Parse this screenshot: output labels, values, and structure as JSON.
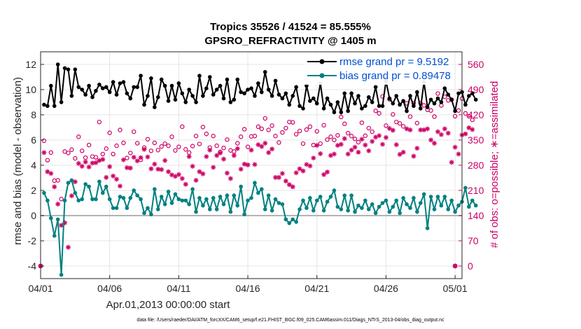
{
  "chart_data": {
    "type": "line",
    "title": "Tropics 35526 / 41524 = 85.555%",
    "subtitle": "GPSRO_REFRACTIVITY @ 1405 m",
    "xlabel": "Apr.01,2013 00:00:00 start",
    "ylabel_left": "rmse and bias (model - observation)",
    "ylabel_right": "# of obs: o=possible; ∗=assimilated",
    "footnote": "data file: /Users/raeder/DAI/ATM_forcXX/CAM6_setup/f.e21.FHIST_BGC.f09_025.CAM6assim.011/Diags_NTrS_2013-04/obs_diag_output.nc",
    "xlim": [
      0,
      30.5
    ],
    "ylim_left": [
      -5,
      13
    ],
    "ylim_right": [
      -35,
      595
    ],
    "x_ticks": [
      0,
      5,
      10,
      15,
      20,
      25,
      30
    ],
    "x_tick_labels": [
      "04/01",
      "04/06",
      "04/11",
      "04/16",
      "04/21",
      "04/26",
      "05/01"
    ],
    "y_left_ticks": [
      "-4",
      "-2",
      "0",
      "2",
      "4",
      "6",
      "8",
      "10",
      "12"
    ],
    "y_right_ticks": [
      "0",
      "70",
      "140",
      "210",
      "280",
      "350",
      "420",
      "490",
      "560"
    ],
    "grid": true,
    "legend": {
      "location": "top-right",
      "entries": [
        "rmse grand pr = 9.5192",
        "bias grand pr = 0.89478"
      ]
    },
    "colors": {
      "rmse": "#000000",
      "bias": "#008080",
      "obs": "#cc0066",
      "legend_text": "#0050d0",
      "zero_line": "#b3b3b3",
      "grid": "#e6e6e6"
    },
    "step_days": 0.25,
    "x_start": 0.25,
    "series": [
      {
        "name": "rmse",
        "axis": "left",
        "values": [
          8.8,
          8.7,
          10.3,
          8.7,
          12.0,
          9.0,
          11.7,
          11.6,
          9.5,
          11.6,
          10.2,
          10.0,
          9.6,
          10.3,
          9.4,
          9.9,
          10.4,
          10.1,
          10.2,
          9.8,
          10.6,
          9.6,
          10.5,
          10.6,
          9.7,
          9.3,
          10.2,
          10.2,
          11.1,
          8.8,
          9.5,
          10.9,
          8.6,
          9.4,
          10.8,
          10.3,
          9.1,
          10.3,
          9.2,
          10.5,
          9.7,
          9.0,
          10.0,
          9.5,
          9.0,
          11.1,
          9.5,
          10.1,
          11.0,
          9.6,
          10.0,
          10.3,
          9.3,
          10.8,
          9.0,
          9.2,
          10.8,
          9.8,
          9.7,
          10.0,
          10.1,
          9.5,
          10.5,
          9.8,
          11.4,
          10.0,
          9.5,
          10.7,
          9.6,
          9.3,
          9.7,
          8.8,
          9.5,
          10.2,
          8.7,
          8.5,
          10.3,
          9.1,
          9.3,
          8.9,
          10.5,
          8.5,
          9.3,
          8.8,
          8.2,
          9.0,
          8.2,
          9.7,
          8.3,
          9.7,
          8.9,
          9.5,
          8.5,
          8.7,
          9.4,
          9.0,
          10.2,
          8.7,
          8.7,
          10.7,
          9.3,
          8.9,
          9.5,
          8.8,
          9.1,
          8.3,
          9.5,
          8.7,
          9.8,
          8.5,
          10.6,
          8.6,
          9.2,
          8.9,
          9.3,
          9.0,
          10.1,
          9.6,
          9.2,
          8.3,
          9.7,
          9.8,
          8.8,
          9.5,
          9.7,
          9.2
        ]
      },
      {
        "name": "bias",
        "axis": "left",
        "values": [
          1.8,
          1.2,
          -0.2,
          -1.6,
          -0.3,
          -4.7,
          1.2,
          2.6,
          2.8,
          1.8,
          1.2,
          1.3,
          2.5,
          2.3,
          1.3,
          1.3,
          2.7,
          1.8,
          2.3,
          1.3,
          0.6,
          0.6,
          1.5,
          1.4,
          0.6,
          1.4,
          2.0,
          1.6,
          1.3,
          0.2,
          0.6,
          0.1,
          2.1,
          0.5,
          1.5,
          0.9,
          1.9,
          1.0,
          1.7,
          1.3,
          1.2,
          1.2,
          0.9,
          2.1,
          0.3,
          1.4,
          0.8,
          1.3,
          0.5,
          1.4,
          0.5,
          1.5,
          0.9,
          1.6,
          0.3,
          1.6,
          0.8,
          2.3,
          0.1,
          1.2,
          1.4,
          2.6,
          1.8,
          2.1,
          0.5,
          1.6,
          0.4,
          1.3,
          1.0,
          0.9,
          -0.3,
          -0.6,
          -0.3,
          -0.5,
          0.5,
          1.2,
          0.6,
          1.4,
          0.4,
          1.2,
          1.5,
          0.4,
          1.1,
          1.5,
          2.0,
          0.7,
          0.5,
          1.6,
          0.4,
          1.6,
          0.3,
          0.8,
          0.6,
          1.2,
          0.5,
          0.9,
          0.2,
          0.7,
          1.0,
          1.2,
          0.3,
          0.7,
          1.2,
          0.2,
          1.4,
          0.9,
          0.6,
          1.4,
          0.3,
          1.0,
          1.7,
          -1.0,
          1.5,
          0.5,
          1.5,
          0.8,
          1.5,
          0.5,
          1.2,
          0.3,
          0.8,
          1.1,
          2.2,
          0.7,
          1.2,
          0.8
        ]
      },
      {
        "name": "obs possible",
        "axis": "right",
        "marker": "o",
        "values": [
          0,
          348,
          294,
          315,
          237,
          238,
          186,
          318,
          314,
          323,
          299,
          359,
          320,
          301,
          336,
          304,
          302,
          400,
          311,
          326,
          370,
          311,
          334,
          378,
          342,
          300,
          314,
          373,
          341,
          295,
          329,
          352,
          320,
          342,
          322,
          332,
          340,
          334,
          359,
          321,
          331,
          387,
          324,
          315,
          333,
          361,
          339,
          386,
          367,
          329,
          361,
          334,
          317,
          328,
          351,
          321,
          318,
          341,
          359,
          380,
          331,
          360,
          361,
          387,
          381,
          410,
          378,
          390,
          361,
          343,
          371,
          383,
          400,
          399,
          366,
          375,
          340,
          379,
          387,
          336,
          374,
          340,
          391,
          351,
          359,
          350,
          363,
          414,
          395,
          369,
          361,
          353,
          344,
          398,
          362,
          383,
          373,
          431,
          424,
          471,
          390,
          463,
          421,
          400,
          396,
          388,
          452,
          415,
          452,
          397,
          452,
          446,
          434,
          432,
          415,
          479,
          446,
          470,
          460,
          462,
          416,
          432,
          465,
          424,
          416,
          406,
          0
        ]
      },
      {
        "name": "obs assimilated",
        "axis": "right",
        "marker": "*",
        "values": [
          0,
          315,
          262,
          257,
          220,
          172,
          113,
          120,
          52,
          195,
          234,
          285,
          277,
          289,
          275,
          286,
          287,
          293,
          296,
          246,
          276,
          250,
          241,
          222,
          295,
          273,
          272,
          302,
          292,
          301,
          324,
          303,
          270,
          283,
          269,
          268,
          293,
          262,
          253,
          249,
          254,
          243,
          227,
          304,
          277,
          238,
          262,
          256,
          304,
          322,
          274,
          307,
          314,
          297,
          258,
          243,
          307,
          326,
          269,
          283,
          281,
          322,
          282,
          337,
          332,
          341,
          315,
          325,
          246,
          246,
          257,
          236,
          226,
          220,
          259,
          270,
          264,
          282,
          278,
          300,
          335,
          312,
          254,
          261,
          307,
          311,
          335,
          338,
          354,
          311,
          322,
          330,
          316,
          352,
          336,
          320,
          346,
          358,
          362,
          338,
          357,
          382,
          377,
          337,
          310,
          316,
          381,
          378,
          305,
          327,
          378,
          378,
          381,
          350,
          341,
          373,
          365,
          381,
          369,
          288,
          330,
          311,
          364,
          367,
          384,
          379,
          0
        ]
      }
    ]
  }
}
